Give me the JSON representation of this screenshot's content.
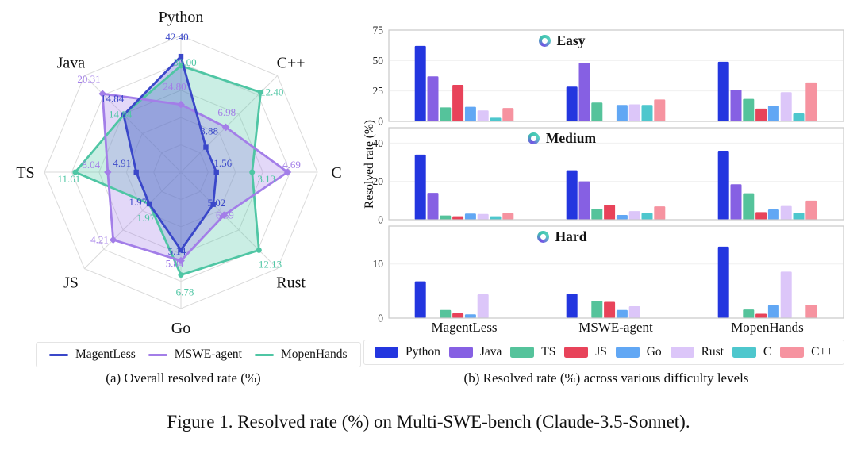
{
  "figure_caption": "Figure 1. Resolved rate (%) on Multi-SWE-bench (Claude-3.5-Sonnet).",
  "panel_a": {
    "caption": "(a) Overall resolved rate (%)"
  },
  "panel_b": {
    "caption": "(b) Resolved rate (%) across various difficulty levels",
    "ylabel": "Resolved rate (%)"
  },
  "languages": [
    {
      "name": "Python",
      "color": "#2336df"
    },
    {
      "name": "Java",
      "color": "#8660e3"
    },
    {
      "name": "TS",
      "color": "#55c39b"
    },
    {
      "name": "JS",
      "color": "#e8435a"
    },
    {
      "name": "Go",
      "color": "#61a7f4"
    },
    {
      "name": "Rust",
      "color": "#dcc6f9"
    },
    {
      "name": "C",
      "color": "#4ec7cd"
    },
    {
      "name": "C++",
      "color": "#f693a0"
    }
  ],
  "chart_data": [
    {
      "type": "radar",
      "title": "(a) Overall resolved rate (%)",
      "axes": [
        "Python",
        "C++",
        "C",
        "Rust",
        "Go",
        "JS",
        "TS",
        "Java"
      ],
      "axis_max": [
        50,
        15,
        6,
        15,
        9,
        6,
        15,
        25
      ],
      "rings": 5,
      "legend_position": "bottom",
      "series": [
        {
          "name": "MagentLess",
          "color": "#3a47c9",
          "values": [
            42.4,
            3.88,
            1.56,
            5.02,
            5.14,
            1.97,
            4.91,
            14.84
          ]
        },
        {
          "name": "MSWE-agent",
          "color": "#a37ee8",
          "values": [
            24.8,
            6.98,
            4.69,
            6.69,
            5.84,
            4.21,
            8.04,
            20.31
          ]
        },
        {
          "name": "MopenHands",
          "color": "#4fc6a4",
          "values": [
            39.0,
            12.4,
            3.13,
            12.13,
            6.78,
            1.97,
            11.61,
            14.84
          ]
        }
      ]
    },
    {
      "type": "bar",
      "title": "Easy",
      "categories": [
        "MagentLess",
        "MSWE-agent",
        "MopenHands"
      ],
      "ylim": [
        0,
        75
      ],
      "yticks": [
        0,
        25,
        50,
        75
      ],
      "grid": true,
      "series": [
        {
          "name": "Python",
          "color": "#2336df",
          "values": [
            62,
            28.5,
            49
          ]
        },
        {
          "name": "Java",
          "color": "#8660e3",
          "values": [
            37,
            48,
            26
          ]
        },
        {
          "name": "TS",
          "color": "#55c39b",
          "values": [
            11.5,
            15.5,
            18.5
          ]
        },
        {
          "name": "JS",
          "color": "#e8435a",
          "values": [
            30,
            0,
            10.5
          ]
        },
        {
          "name": "Go",
          "color": "#61a7f4",
          "values": [
            12,
            13.5,
            13
          ]
        },
        {
          "name": "Rust",
          "color": "#dcc6f9",
          "values": [
            9,
            14,
            24
          ]
        },
        {
          "name": "C",
          "color": "#4ec7cd",
          "values": [
            3,
            13.5,
            6.5
          ]
        },
        {
          "name": "C++",
          "color": "#f693a0",
          "values": [
            11,
            18,
            32
          ]
        }
      ]
    },
    {
      "type": "bar",
      "title": "Medium",
      "categories": [
        "MagentLess",
        "MSWE-agent",
        "MopenHands"
      ],
      "ylim": [
        0,
        48
      ],
      "yticks": [
        0,
        20,
        40
      ],
      "grid": true,
      "series": [
        {
          "name": "Python",
          "color": "#2336df",
          "values": [
            34,
            25.8,
            36
          ]
        },
        {
          "name": "Java",
          "color": "#8660e3",
          "values": [
            14,
            20,
            18.5
          ]
        },
        {
          "name": "TS",
          "color": "#55c39b",
          "values": [
            2.2,
            5.8,
            13.8
          ]
        },
        {
          "name": "JS",
          "color": "#e8435a",
          "values": [
            1.8,
            7.8,
            4
          ]
        },
        {
          "name": "Go",
          "color": "#61a7f4",
          "values": [
            3.2,
            2.5,
            5.4
          ]
        },
        {
          "name": "Rust",
          "color": "#dcc6f9",
          "values": [
            3,
            4.5,
            7.2
          ]
        },
        {
          "name": "C",
          "color": "#4ec7cd",
          "values": [
            1.8,
            3.5,
            3.6
          ]
        },
        {
          "name": "C++",
          "color": "#f693a0",
          "values": [
            3.5,
            7,
            10
          ]
        }
      ]
    },
    {
      "type": "bar",
      "title": "Hard",
      "categories": [
        "MagentLess",
        "MSWE-agent",
        "MopenHands"
      ],
      "ylim": [
        0,
        17
      ],
      "yticks": [
        0,
        10
      ],
      "grid": true,
      "series": [
        {
          "name": "Python",
          "color": "#2336df",
          "values": [
            6.8,
            4.5,
            13.2
          ]
        },
        {
          "name": "Java",
          "color": "#8660e3",
          "values": [
            0,
            0,
            0
          ]
        },
        {
          "name": "TS",
          "color": "#55c39b",
          "values": [
            1.5,
            3.2,
            1.6
          ]
        },
        {
          "name": "JS",
          "color": "#e8435a",
          "values": [
            0.9,
            3.0,
            0.8
          ]
        },
        {
          "name": "Go",
          "color": "#61a7f4",
          "values": [
            0.7,
            1.5,
            2.4
          ]
        },
        {
          "name": "Rust",
          "color": "#dcc6f9",
          "values": [
            4.4,
            2.2,
            8.6
          ]
        },
        {
          "name": "C",
          "color": "#4ec7cd",
          "values": [
            0,
            0,
            0
          ]
        },
        {
          "name": "C++",
          "color": "#f693a0",
          "values": [
            0,
            0,
            2.5
          ]
        }
      ]
    }
  ]
}
